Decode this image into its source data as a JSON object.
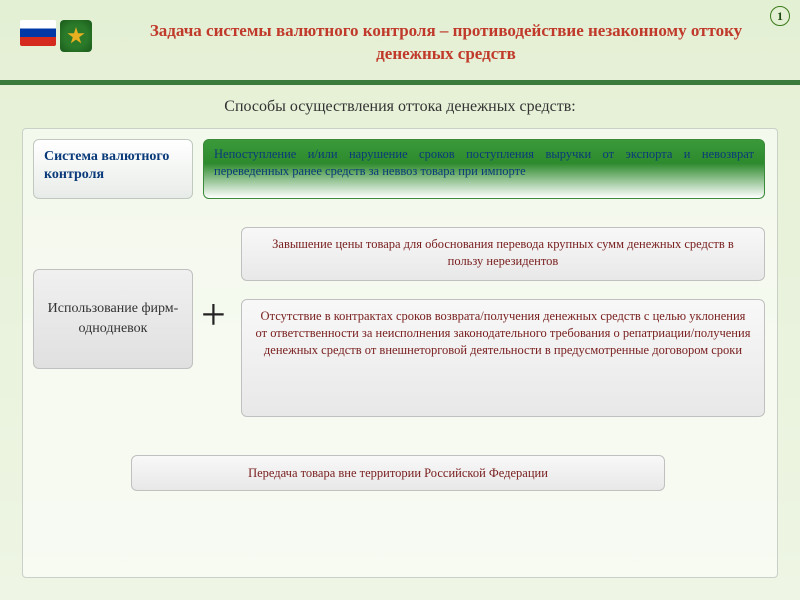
{
  "slide_number": "1",
  "title": "Задача системы валютного контроля – противодействие незаконному оттоку денежных средств",
  "subtitle": "Способы осуществления оттока денежных средств:",
  "left_label": "Система валютного контроля",
  "green_box": "Непоступление и/или нарушение сроков поступления выручки от экспорта и невозврат переведенных ранее средств за неввоз товара при импорте",
  "firm_box": "Использование фирм-однодневок",
  "plus": "+",
  "box1": "Завышение цены товара для обоснования перевода крупных сумм денежных средств в пользу нерезидентов",
  "box2": "Отсутствие в контрактах сроков возврата/получения денежных средств с целью уклонения от ответственности за неисполнения законодательного требования о репатриации/получения денежных средств от внешнеторговой деятельности в предусмотренные договором сроки",
  "box3": "Передача товара вне территории Российской Федерации",
  "colors": {
    "title_color": "#c0392b",
    "divider_color": "#3a7a3a",
    "bg_top": "#e4f0d4",
    "bg_bottom": "#eef5e4",
    "green_box_top": "#3a9a3a",
    "info_text": "#7a2020",
    "label_text": "#0a3a7a"
  }
}
